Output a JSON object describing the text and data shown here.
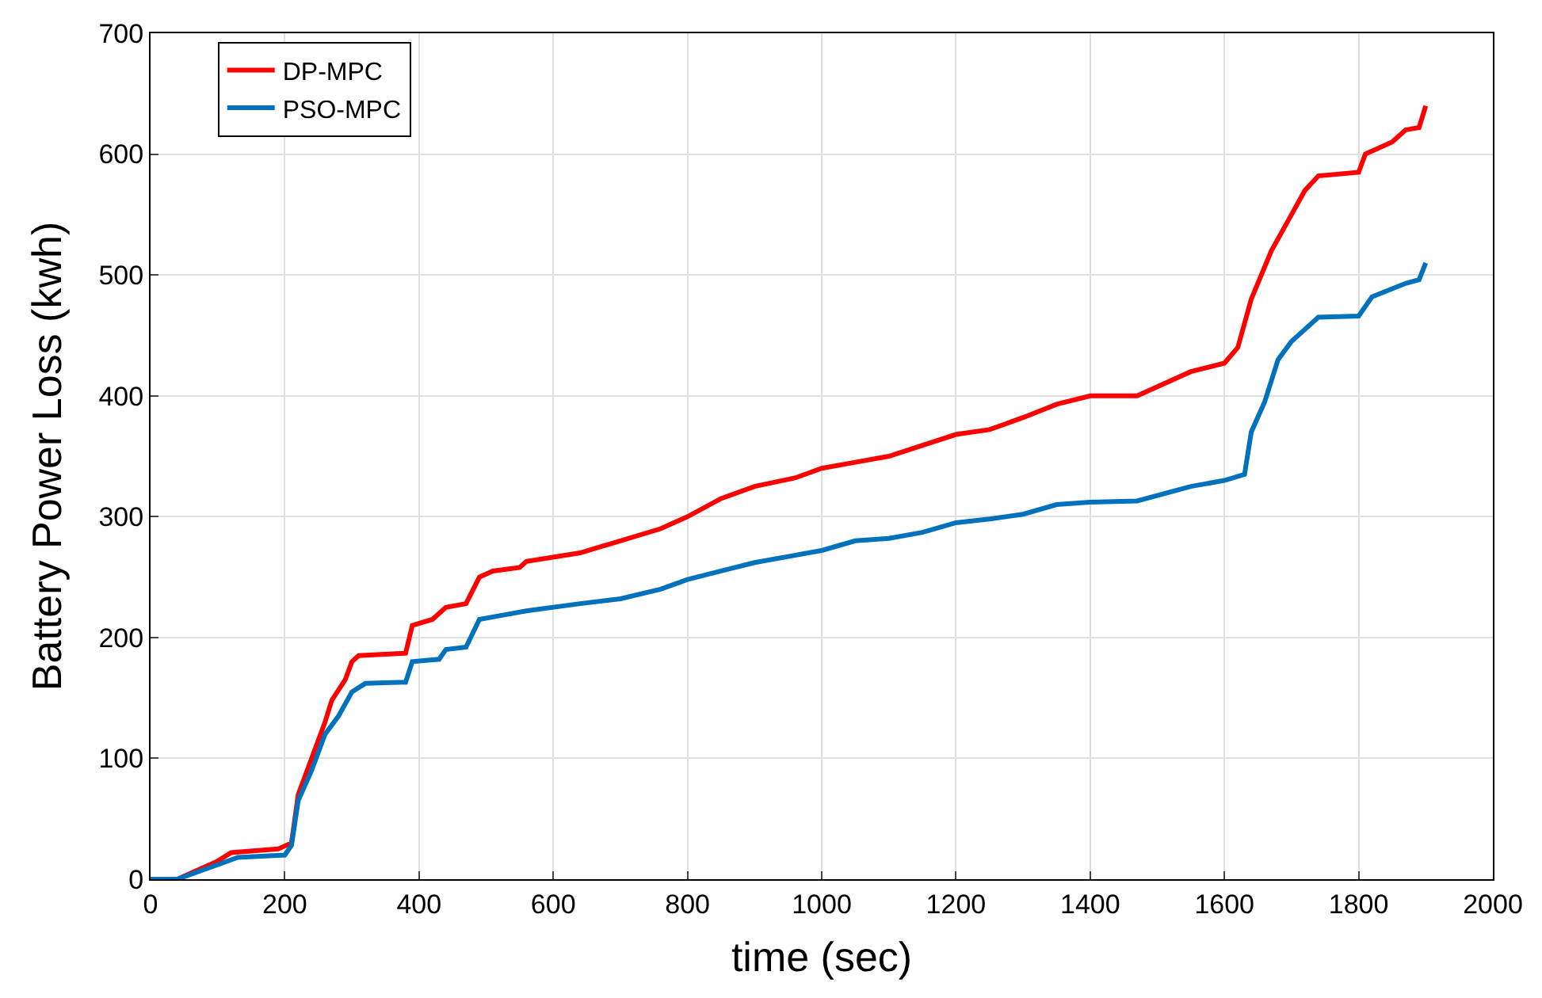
{
  "chart_data": {
    "type": "line",
    "xlabel": "time (sec)",
    "ylabel": "Battery Power Loss (kwh)",
    "xlim": [
      0,
      2000
    ],
    "xticks": [
      0,
      200,
      400,
      600,
      800,
      1000,
      1200,
      1400,
      1600,
      1800,
      2000
    ],
    "ylim": [
      0,
      700
    ],
    "yticks": [
      0,
      100,
      200,
      300,
      400,
      500,
      600,
      700
    ],
    "grid": true,
    "legend": "top left",
    "line_style": "solid",
    "series": [
      {
        "name": "DP-MPC",
        "color": "#ff0000",
        "x": [
          0,
          40,
          100,
          120,
          190,
          210,
          220,
          240,
          260,
          270,
          290,
          300,
          310,
          380,
          390,
          420,
          440,
          470,
          490,
          510,
          550,
          560,
          640,
          700,
          760,
          800,
          850,
          900,
          960,
          1000,
          1050,
          1100,
          1200,
          1250,
          1300,
          1350,
          1400,
          1470,
          1550,
          1600,
          1620,
          1640,
          1670,
          1700,
          1720,
          1740,
          1800,
          1810,
          1850,
          1870,
          1890,
          1900
        ],
        "values": [
          0,
          0,
          15,
          22,
          25,
          30,
          70,
          100,
          130,
          148,
          165,
          180,
          185,
          187,
          210,
          215,
          225,
          228,
          250,
          255,
          258,
          263,
          270,
          280,
          290,
          300,
          315,
          325,
          332,
          340,
          345,
          350,
          368,
          372,
          382,
          393,
          400,
          400,
          420,
          427,
          440,
          480,
          520,
          550,
          570,
          582,
          585,
          600,
          610,
          620,
          622,
          640
        ]
      },
      {
        "name": "PSO-MPC",
        "color": "#0072bd",
        "x": [
          0,
          40,
          100,
          130,
          200,
          210,
          220,
          240,
          260,
          280,
          300,
          320,
          380,
          390,
          430,
          440,
          470,
          490,
          520,
          560,
          640,
          700,
          760,
          800,
          850,
          900,
          960,
          1000,
          1050,
          1100,
          1150,
          1200,
          1250,
          1300,
          1350,
          1400,
          1470,
          1550,
          1600,
          1630,
          1640,
          1660,
          1680,
          1700,
          1740,
          1800,
          1820,
          1870,
          1890,
          1900
        ],
        "values": [
          0,
          0,
          12,
          18,
          20,
          28,
          65,
          90,
          120,
          135,
          155,
          162,
          163,
          180,
          182,
          190,
          192,
          215,
          218,
          222,
          228,
          232,
          240,
          248,
          255,
          262,
          268,
          272,
          280,
          282,
          287,
          295,
          298,
          302,
          310,
          312,
          313,
          325,
          330,
          335,
          370,
          395,
          430,
          445,
          465,
          466,
          482,
          493,
          496,
          510
        ]
      }
    ]
  }
}
